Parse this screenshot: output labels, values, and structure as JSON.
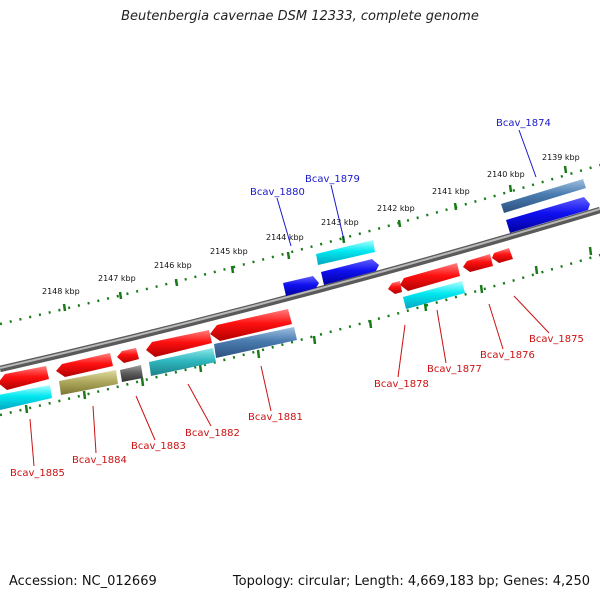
{
  "title": "Beutenbergia cavernae DSM 12333, complete genome",
  "footer": {
    "accession": "Accession: NC_012669",
    "summary": "Topology: circular; Length: 4,669,183 bp; Genes: 4,250"
  },
  "scale_labels": [
    "2139 kbp",
    "2140 kbp",
    "2141 kbp",
    "2142 kbp",
    "2143 kbp",
    "2144 kbp",
    "2145 kbp",
    "2146 kbp",
    "2147 kbp",
    "2148 kbp"
  ],
  "gene_labels": {
    "top": [
      "Bcav_1874",
      "Bcav_1879",
      "Bcav_1880"
    ],
    "bottom": [
      "Bcav_1875",
      "Bcav_1876",
      "Bcav_1877",
      "Bcav_1878",
      "Bcav_1881",
      "Bcav_1882",
      "Bcav_1883",
      "Bcav_1884",
      "Bcav_1885"
    ]
  },
  "colors": {
    "top_label": "#1a1acc",
    "bottom_label": "#cc1111",
    "backbone": "#808080",
    "tick": "#1a7a1a"
  }
}
